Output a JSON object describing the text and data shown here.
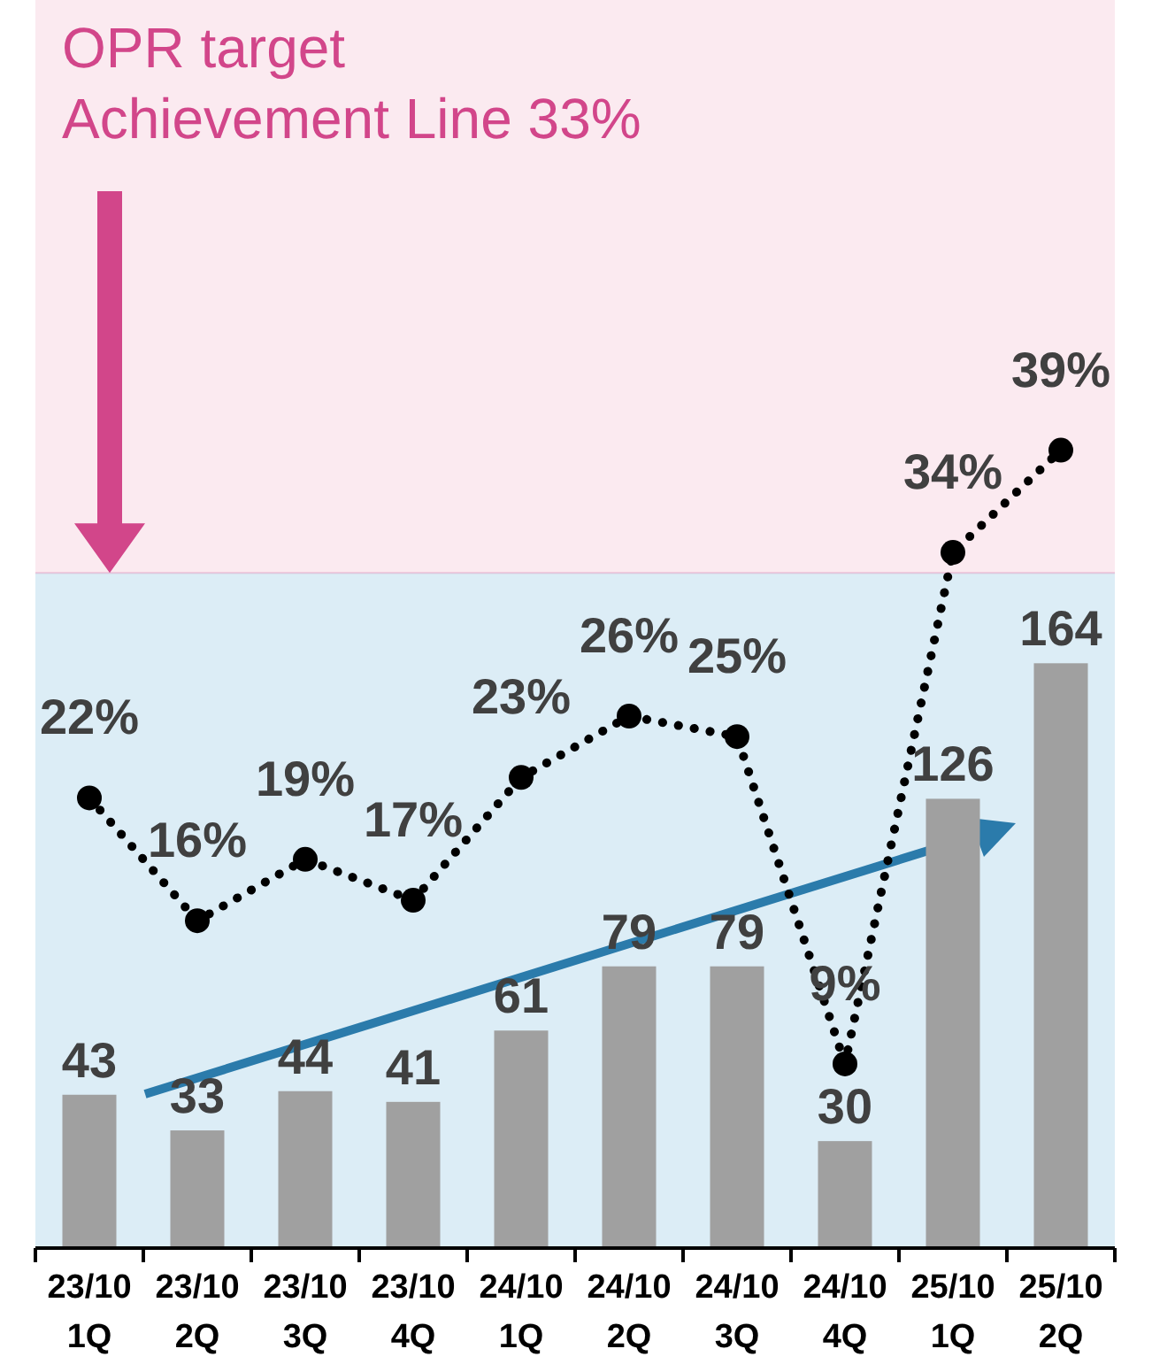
{
  "chart_data": {
    "type": "bar",
    "categories": [
      "23/10\n1Q",
      "23/10\n2Q",
      "23/10\n3Q",
      "23/10\n4Q",
      "24/10\n1Q",
      "24/10\n2Q",
      "24/10\n3Q",
      "24/10\n4Q",
      "25/10\n1Q",
      "25/10\n2Q"
    ],
    "series": [
      {
        "color": "#a0a0a0",
        "values": [
          43,
          33,
          44,
          41,
          61,
          79,
          79,
          30,
          126,
          164
        ],
        "value_labels": [
          "43",
          "33",
          "44",
          "41",
          "61",
          "79",
          "79",
          "30",
          "126",
          "164"
        ]
      },
      {
        "type": "line",
        "axis": "y2",
        "color": "#000000",
        "values": [
          22,
          16,
          19,
          17,
          23,
          26,
          25,
          9,
          34,
          39
        ],
        "value_labels": [
          "22%",
          "16%",
          "19%",
          "17%",
          "23%",
          "26%",
          "25%",
          "9%",
          "34%",
          "39%"
        ]
      }
    ],
    "ylim": [
      0,
      350
    ],
    "y2lim": [
      0,
      61
    ],
    "tick_labels": "x",
    "marker": "circle",
    "line_style": "dotted",
    "bands": [
      {
        "axis": "y2",
        "from": 33,
        "to": 61,
        "color": "#fbeaf0"
      },
      {
        "axis": "y2",
        "from": 0,
        "to": 33,
        "color": "#dcedf6"
      }
    ],
    "ref_lines": [
      {
        "axis": "y2",
        "value": 33,
        "label": "OPR target\nAchievement Line 33%",
        "color": "#d2468a"
      }
    ]
  }
}
